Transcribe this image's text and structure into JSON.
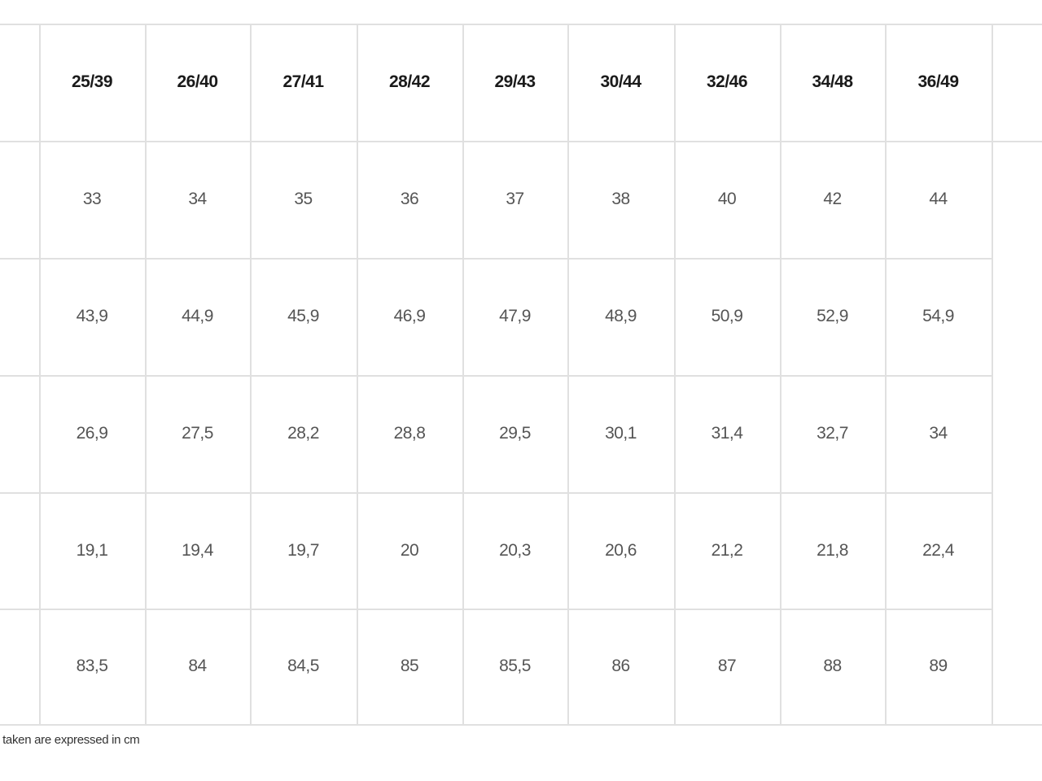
{
  "table": {
    "headers": [
      "25/39",
      "26/40",
      "27/41",
      "28/42",
      "29/43",
      "30/44",
      "32/46",
      "34/48",
      "36/49"
    ],
    "rows": [
      [
        "33",
        "34",
        "35",
        "36",
        "37",
        "38",
        "40",
        "42",
        "44"
      ],
      [
        "43,9",
        "44,9",
        "45,9",
        "46,9",
        "47,9",
        "48,9",
        "50,9",
        "52,9",
        "54,9"
      ],
      [
        "26,9",
        "27,5",
        "28,2",
        "28,8",
        "29,5",
        "30,1",
        "31,4",
        "32,7",
        "34"
      ],
      [
        "19,1",
        "19,4",
        "19,7",
        "20",
        "20,3",
        "20,6",
        "21,2",
        "21,8",
        "22,4"
      ],
      [
        "83,5",
        "84",
        "84,5",
        "85",
        "85,5",
        "86",
        "87",
        "88",
        "89"
      ]
    ]
  },
  "footnote": "s taken are expressed in cm"
}
